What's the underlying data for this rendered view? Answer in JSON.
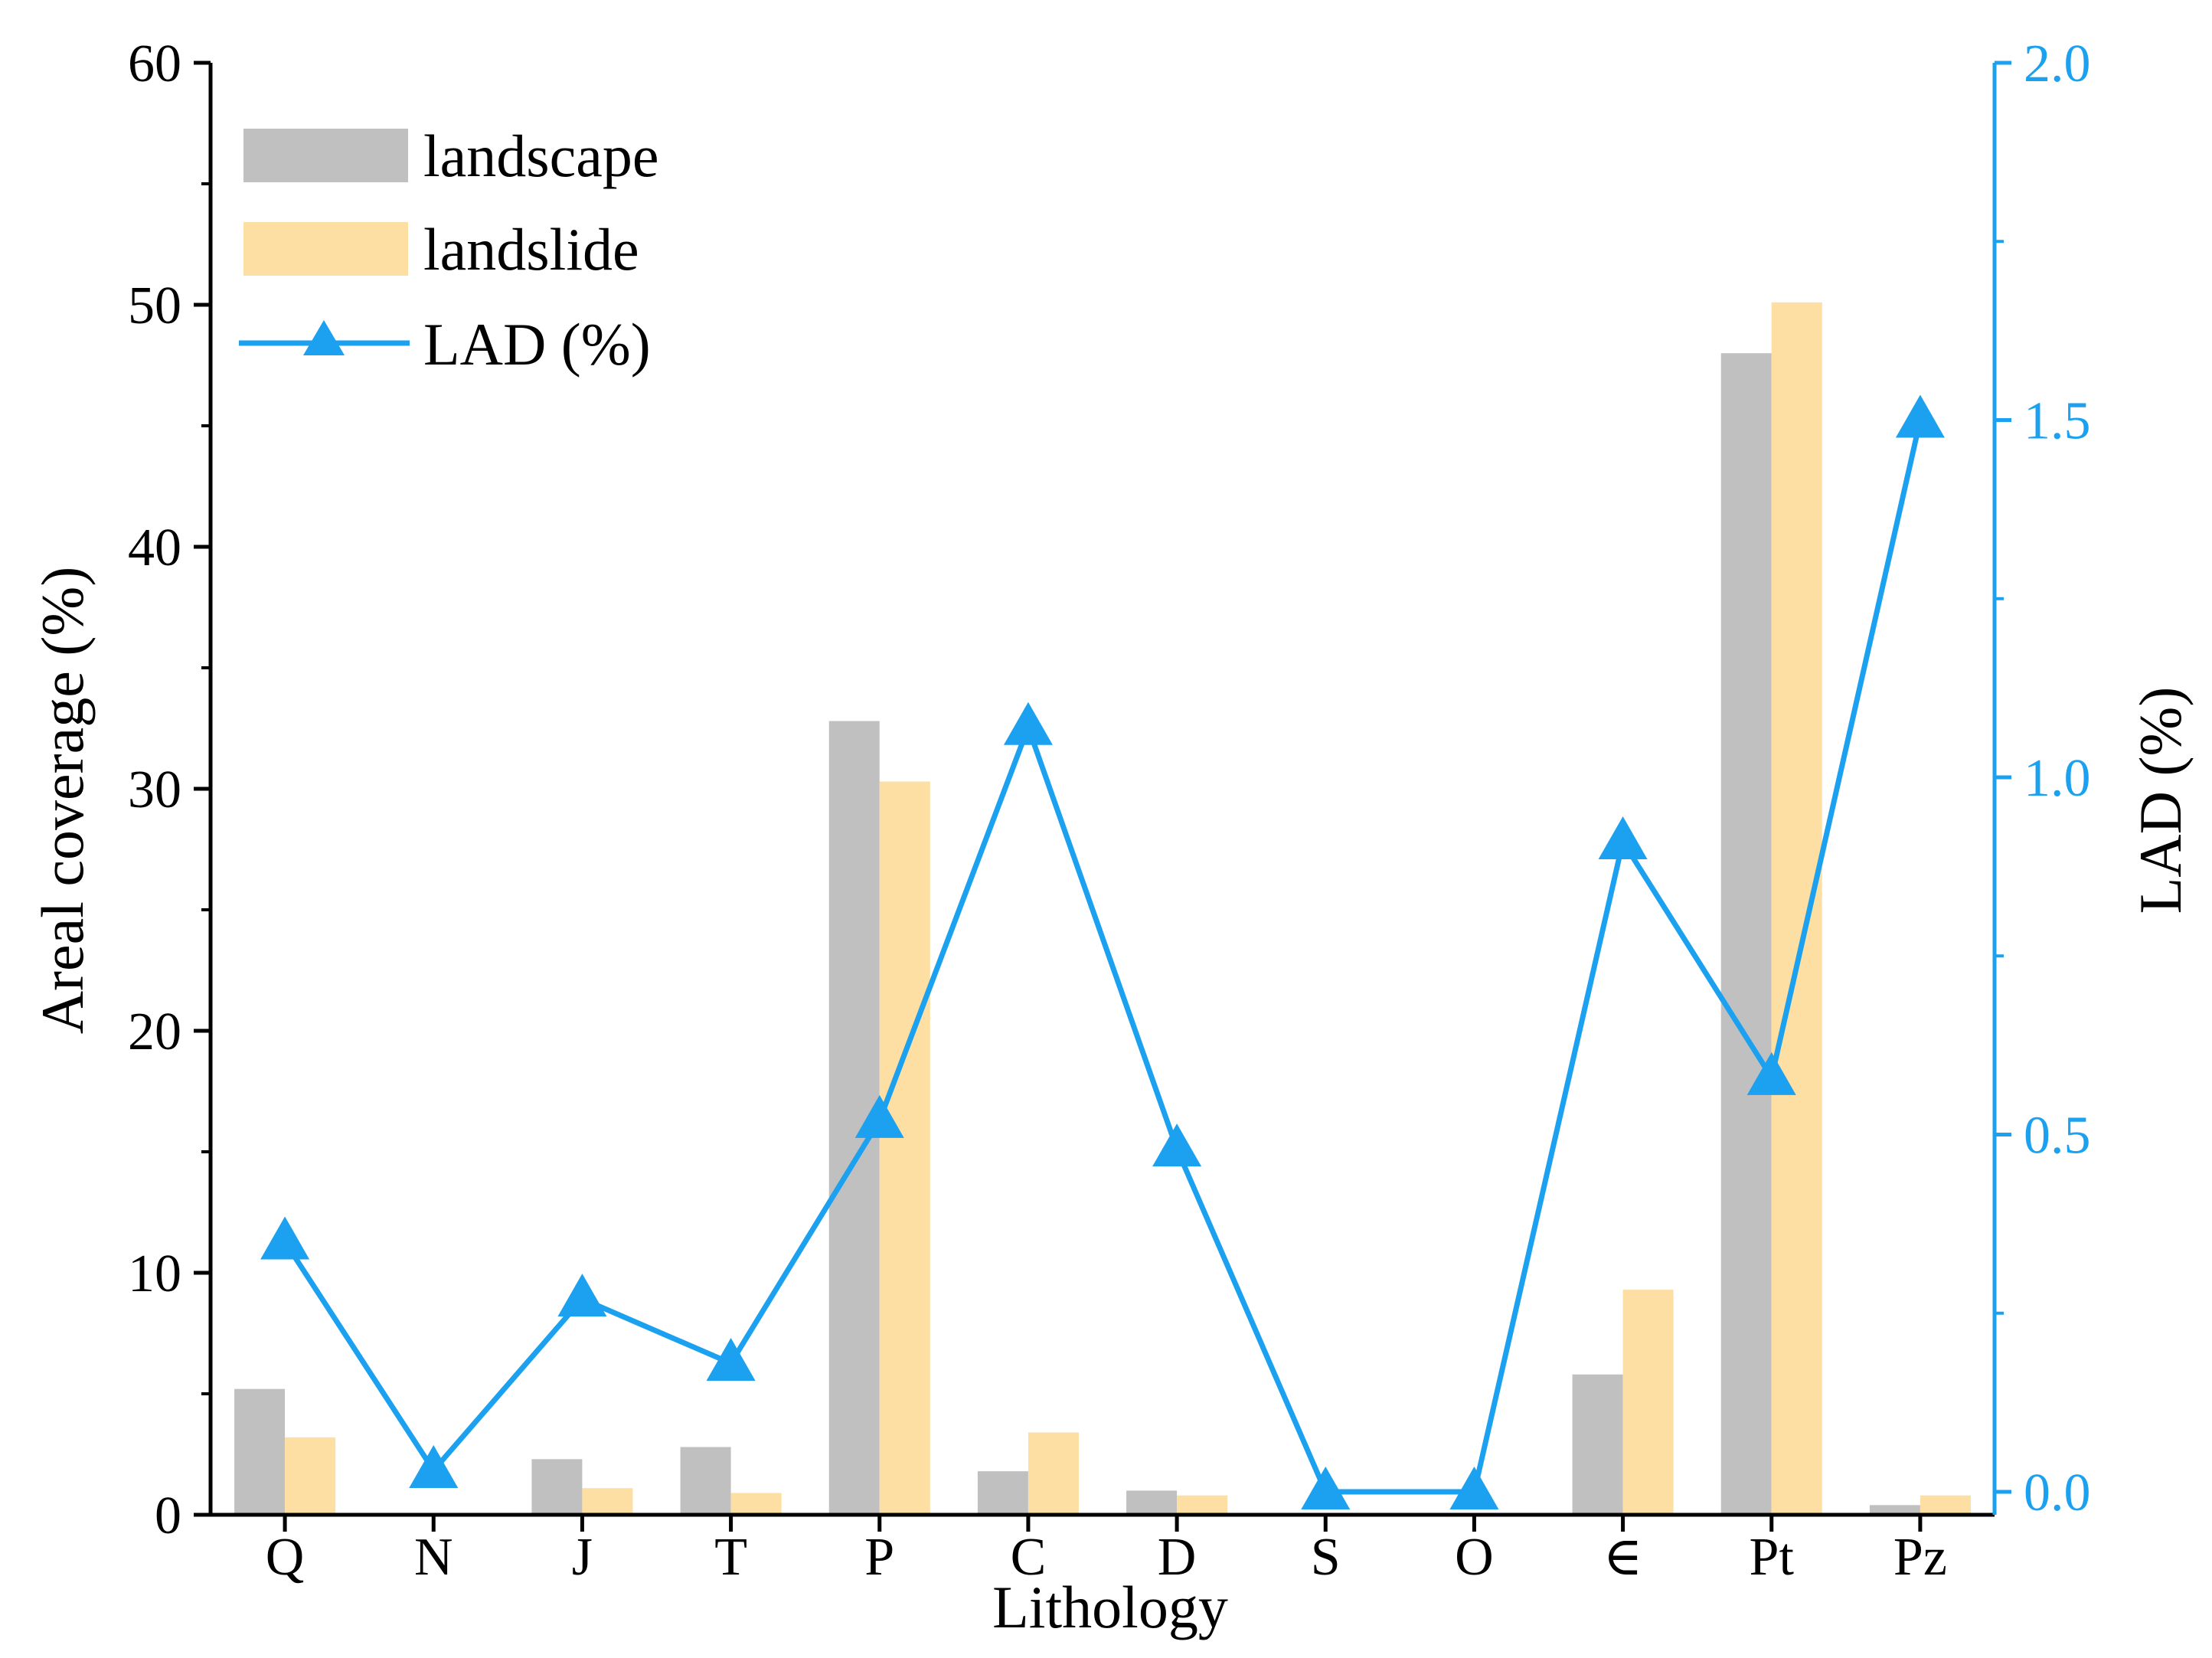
{
  "chart_data": {
    "type": "bar",
    "categories": [
      "Q",
      "N",
      "J",
      "T",
      "P",
      "C",
      "D",
      "S",
      "O",
      "∈",
      "Pt",
      "Pz"
    ],
    "series": [
      {
        "name": "landscape",
        "type": "bar",
        "axis": "left",
        "color": "#c0c0c0",
        "values": [
          5.2,
          0.0,
          2.3,
          2.8,
          32.8,
          1.8,
          1.0,
          0.0,
          0.0,
          5.8,
          48.0,
          0.4
        ]
      },
      {
        "name": "landslide",
        "type": "bar",
        "axis": "left",
        "color": "#fddfa3",
        "values": [
          3.2,
          0.0,
          1.1,
          0.9,
          30.3,
          3.4,
          0.8,
          0.0,
          0.0,
          9.3,
          50.1,
          0.8
        ]
      },
      {
        "name": "LAD (%)",
        "type": "line",
        "axis": "right",
        "color": "#1ba1ef",
        "marker": "triangle",
        "values": [
          0.35,
          0.03,
          0.27,
          0.18,
          0.52,
          1.07,
          0.48,
          0.0,
          0.0,
          0.91,
          0.58,
          1.5
        ]
      }
    ],
    "xlabel": "Lithology",
    "ylabel": "Areal coverage (%)",
    "y2label": "LAD (%)",
    "ylim": [
      0,
      60
    ],
    "yticks": [
      "0",
      "10",
      "20",
      "30",
      "40",
      "50",
      "60"
    ],
    "y2lim": [
      0,
      2.0
    ],
    "y2ticks": [
      "0.0",
      "0.5",
      "1.0",
      "1.5",
      "2.0"
    ],
    "legend_position": "top-left",
    "grid": false,
    "y2_color": "#1ba1ef"
  }
}
